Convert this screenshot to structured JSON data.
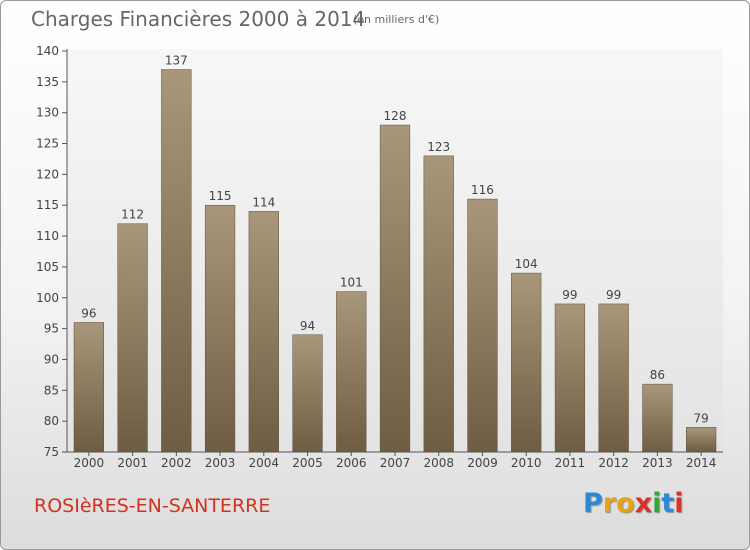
{
  "header": {
    "title": "Charges Financières 2000 à 2014",
    "unit": "(en milliers d'€)"
  },
  "footer": {
    "commune": "ROSIèRES-EN-SANTERRE",
    "logo_letters": [
      "P",
      "r",
      "o",
      "x",
      "i",
      "t",
      "i"
    ],
    "logo_colors": [
      "#2b8ad6",
      "#e8a21a",
      "#e8a21a",
      "#d6332b",
      "#3aa33a",
      "#2b8ad6",
      "#d6332b"
    ]
  },
  "chart_data": {
    "type": "bar",
    "title": "Charges Financières 2000 à 2014",
    "subtitle": "(en milliers d'€)",
    "categories": [
      "2000",
      "2001",
      "2002",
      "2003",
      "2004",
      "2005",
      "2006",
      "2007",
      "2008",
      "2009",
      "2010",
      "2011",
      "2012",
      "2013",
      "2014"
    ],
    "values": [
      96,
      112,
      137,
      115,
      114,
      94,
      101,
      128,
      123,
      116,
      104,
      99,
      99,
      86,
      79
    ],
    "ylim": [
      75,
      140
    ],
    "yticks": [
      75,
      80,
      85,
      90,
      95,
      100,
      105,
      110,
      115,
      120,
      125,
      130,
      135,
      140
    ],
    "grid": false,
    "bar_color": "#8e7c5f"
  }
}
